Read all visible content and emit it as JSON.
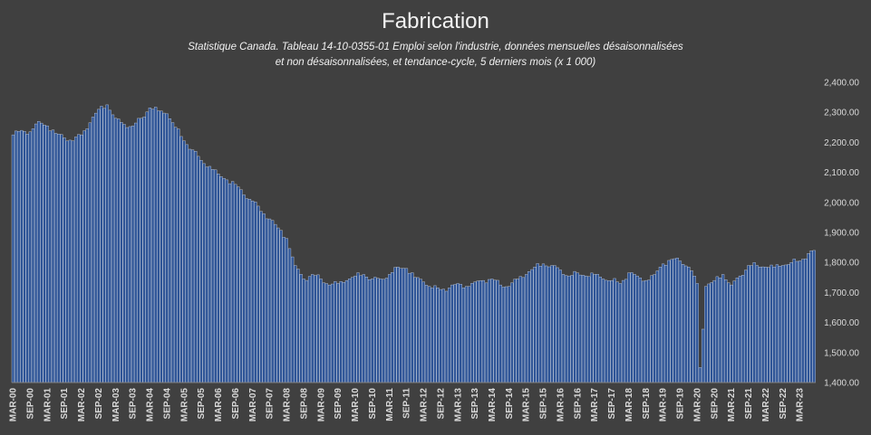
{
  "chart_data": {
    "type": "bar",
    "title": "Fabrication",
    "subtitle_line1": "Statistique Canada. Tableau 14-10-0355-01  Emploi selon l'industrie, données mensuelles désaisonnalisées",
    "subtitle_line2": "et non désaisonnalisées, et tendance-cycle, 5 derniers mois (x 1 000)",
    "xlabel": "",
    "ylabel": "",
    "ylim": [
      1400,
      2400
    ],
    "grid": false,
    "legend": "none",
    "colors": {
      "bar_fill": "#2f5597",
      "bar_edge": "#dce3ef",
      "background": "#404040"
    },
    "y_ticks": [
      "1,400.00",
      "1,500.00",
      "1,600.00",
      "1,700.00",
      "1,800.00",
      "1,900.00",
      "2,000.00",
      "2,100.00",
      "2,200.00",
      "2,300.00",
      "2,400.00"
    ],
    "x_tick_labels": [
      "MAR-00",
      "SEP-00",
      "MAR-01",
      "SEP-01",
      "MAR-02",
      "SEP-02",
      "MAR-03",
      "SEP-03",
      "MAR-04",
      "SEP-04",
      "MAR-05",
      "SEP-05",
      "MAR-06",
      "SEP-06",
      "MAR-07",
      "SEP-07",
      "MAR-08",
      "SEP-08",
      "MAR-09",
      "SEP-09",
      "MAR-10",
      "SEP-10",
      "MAR-11",
      "SEP-11",
      "MAR-12",
      "SEP-12",
      "MAR-13",
      "SEP-13",
      "MAR-14",
      "SEP-14",
      "MAR-15",
      "SEP-15",
      "MAR-16",
      "SEP-16",
      "MAR-17",
      "SEP-17",
      "MAR-18",
      "SEP-18",
      "MAR-19",
      "SEP-19",
      "MAR-20",
      "SEP-20",
      "MAR-21",
      "SEP-21",
      "MAR-22",
      "SEP-22",
      "MAR-23"
    ],
    "x": [
      "2000-03",
      "2000-06",
      "2000-09",
      "2000-12",
      "2001-03",
      "2001-06",
      "2001-09",
      "2001-12",
      "2002-03",
      "2002-06",
      "2002-09",
      "2002-12",
      "2003-03",
      "2003-06",
      "2003-09",
      "2003-12",
      "2004-03",
      "2004-06",
      "2004-09",
      "2004-12",
      "2005-03",
      "2005-06",
      "2005-09",
      "2005-12",
      "2006-03",
      "2006-06",
      "2006-09",
      "2006-12",
      "2007-03",
      "2007-06",
      "2007-09",
      "2007-12",
      "2008-03",
      "2008-06",
      "2008-09",
      "2008-12",
      "2009-03",
      "2009-06",
      "2009-09",
      "2009-12",
      "2010-03",
      "2010-06",
      "2010-09",
      "2010-12",
      "2011-03",
      "2011-06",
      "2011-09",
      "2011-12",
      "2012-03",
      "2012-06",
      "2012-09",
      "2012-12",
      "2013-03",
      "2013-06",
      "2013-09",
      "2013-12",
      "2014-03",
      "2014-06",
      "2014-09",
      "2014-12",
      "2015-03",
      "2015-06",
      "2015-09",
      "2015-12",
      "2016-03",
      "2016-06",
      "2016-09",
      "2016-12",
      "2017-03",
      "2017-06",
      "2017-09",
      "2017-12",
      "2018-03",
      "2018-06",
      "2018-09",
      "2018-12",
      "2019-03",
      "2019-06",
      "2019-09",
      "2019-12",
      "2020-03",
      "2020-04",
      "2020-06",
      "2020-09",
      "2020-12",
      "2021-03",
      "2021-06",
      "2021-09",
      "2021-12",
      "2022-03",
      "2022-06",
      "2022-09",
      "2022-12",
      "2023-03",
      "2023-06",
      "2023-08"
    ],
    "values": [
      2225,
      2240,
      2235,
      2270,
      2255,
      2230,
      2215,
      2205,
      2225,
      2265,
      2310,
      2325,
      2280,
      2260,
      2255,
      2280,
      2315,
      2305,
      2295,
      2250,
      2205,
      2175,
      2140,
      2120,
      2095,
      2075,
      2060,
      2025,
      2005,
      1970,
      1945,
      1915,
      1880,
      1790,
      1745,
      1760,
      1745,
      1725,
      1730,
      1740,
      1755,
      1760,
      1745,
      1745,
      1760,
      1785,
      1780,
      1750,
      1735,
      1715,
      1710,
      1715,
      1730,
      1720,
      1735,
      1740,
      1745,
      1725,
      1720,
      1745,
      1760,
      1785,
      1795,
      1790,
      1775,
      1755,
      1765,
      1755,
      1760,
      1745,
      1740,
      1730,
      1765,
      1755,
      1740,
      1760,
      1795,
      1810,
      1805,
      1785,
      1730,
      1450,
      1720,
      1740,
      1760,
      1725,
      1755,
      1790,
      1790,
      1785,
      1785,
      1790,
      1800,
      1805,
      1830,
      1840
    ]
  }
}
